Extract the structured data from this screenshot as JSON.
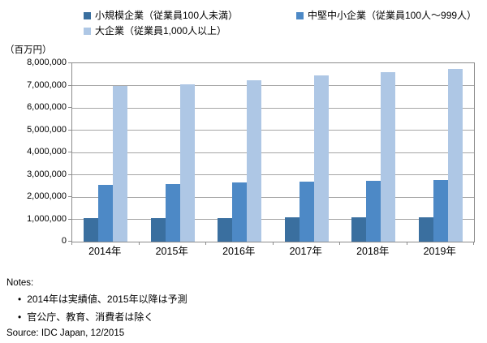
{
  "y_unit": "（百万円）",
  "chart_data": {
    "type": "bar",
    "title": "",
    "categories": [
      "2014年",
      "2015年",
      "2016年",
      "2017年",
      "2018年",
      "2019年"
    ],
    "series": [
      {
        "name": "小規模企業（従業員100人未満）",
        "color": "#3a6f9f",
        "values": [
          1050000,
          1060000,
          1070000,
          1080000,
          1090000,
          1100000
        ]
      },
      {
        "name": "中堅中小企業（従業員100人～999人）",
        "color": "#4d89c6",
        "values": [
          2550000,
          2600000,
          2660000,
          2700000,
          2740000,
          2770000
        ]
      },
      {
        "name": "大企業（従業員1,000人以上）",
        "color": "#aec7e5",
        "values": [
          7000000,
          7060000,
          7240000,
          7460000,
          7600000,
          7760000
        ]
      }
    ],
    "xlabel": "",
    "ylabel": "（百万円）",
    "ylim": [
      0,
      8000000
    ],
    "ytick_step": 1000000,
    "grid": true,
    "legend_position": "top"
  },
  "notes": {
    "title": "Notes:",
    "items": [
      "2014年は実績値、2015年以降は予測",
      "官公庁、教育、消費者は除く"
    ]
  },
  "source": "Source: IDC Japan, 12/2015"
}
